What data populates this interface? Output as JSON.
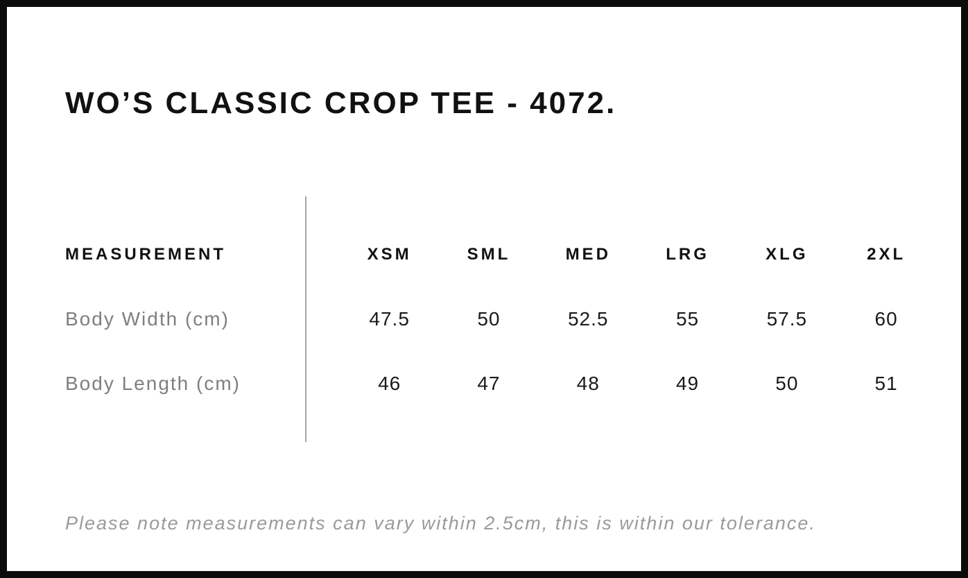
{
  "chart_data": {
    "type": "table",
    "title": "WO’S CLASSIC CROP TEE - 4072.",
    "row_header": "MEASUREMENT",
    "categories": [
      "XSM",
      "SML",
      "MED",
      "LRG",
      "XLG",
      "2XL"
    ],
    "series": [
      {
        "name": "Body Width (cm)",
        "values": [
          47.5,
          50,
          52.5,
          55,
          57.5,
          60
        ]
      },
      {
        "name": "Body Length (cm)",
        "values": [
          46,
          47,
          48,
          49,
          50,
          51
        ]
      }
    ],
    "note": "Please note measurements can vary within 2.5cm, this is within our tolerance."
  },
  "colors": {
    "background": "#ffffff",
    "frame_border": "#0b0b0b",
    "heading_text": "#111111",
    "row_label_gray": "#7f7f7f",
    "value_text": "#1a1a1a",
    "note_gray": "#9a9a9a",
    "divider_gray": "#a3a3a3"
  }
}
